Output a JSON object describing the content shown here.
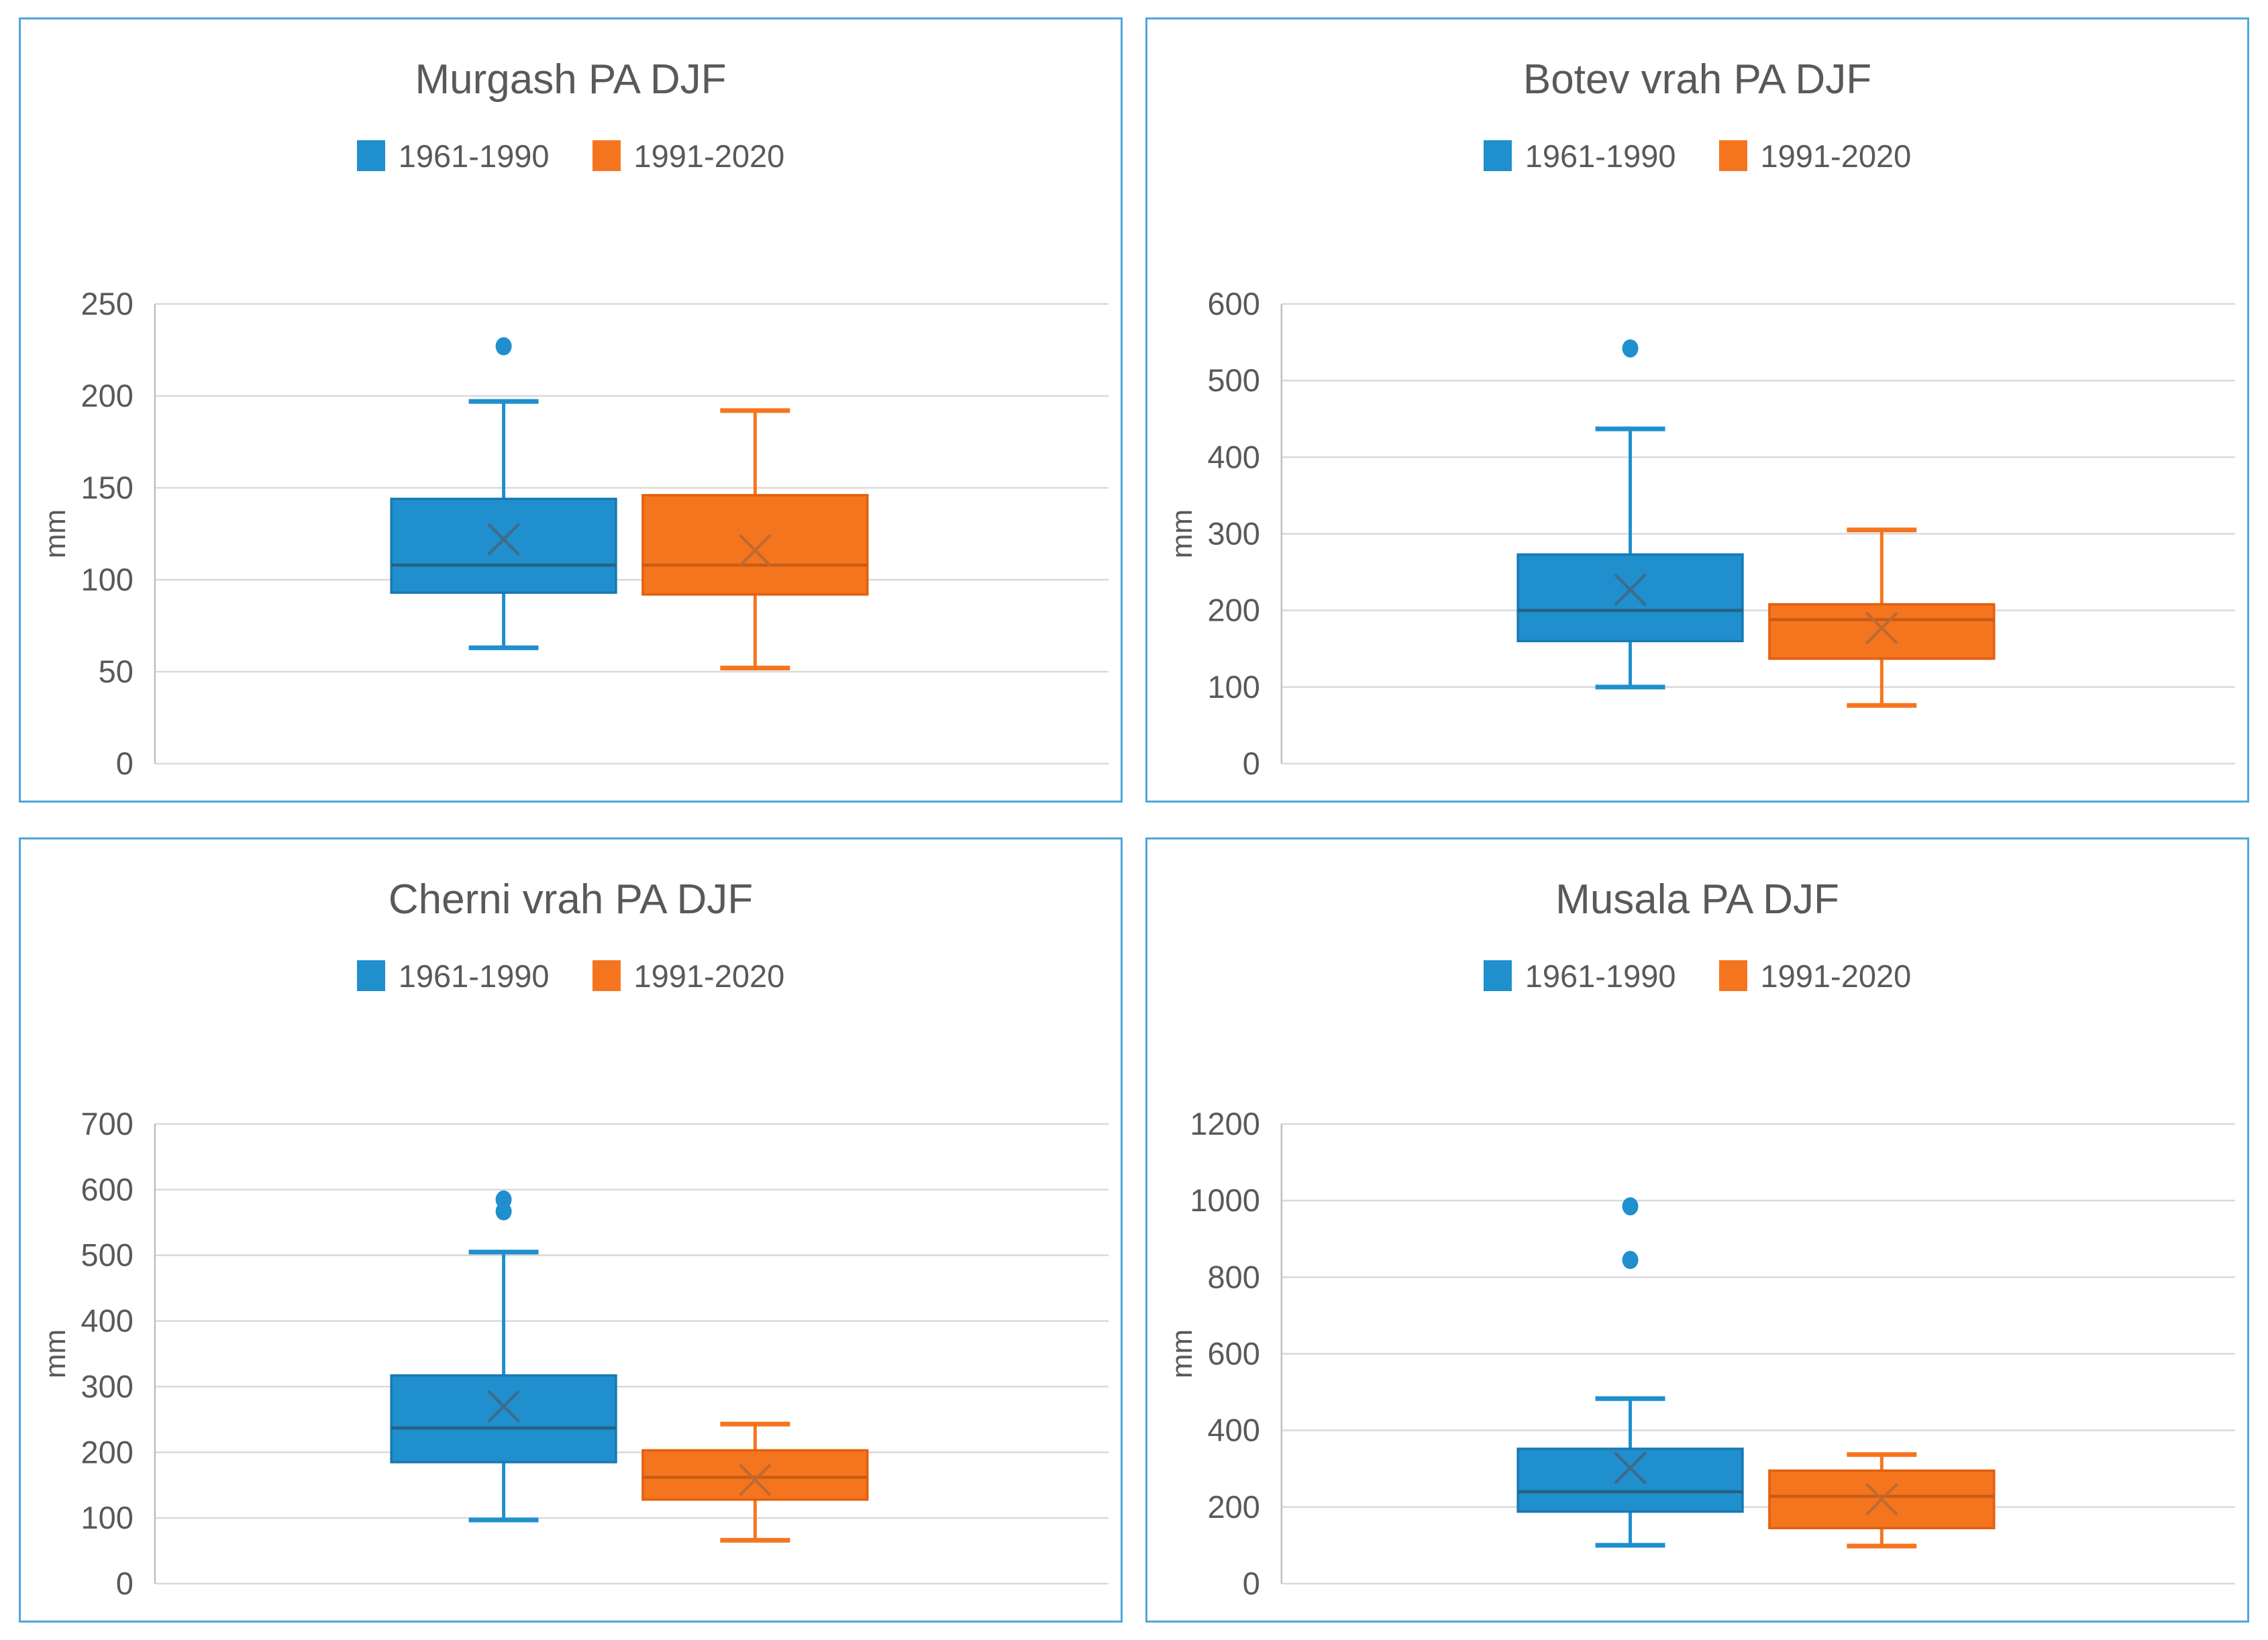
{
  "page": {
    "background": "#FFFFFF",
    "panel_border_color": "#4EA6DE"
  },
  "styles": {
    "gridline": "#D9D9D9",
    "axis_line": "#BFBFBF",
    "text_color": "#595959",
    "series_blue": {
      "fill": "#1F8FCE",
      "stroke": "#1879B2",
      "median": "#27617F",
      "mean": "#3D6D8C"
    },
    "series_orange": {
      "fill": "#F5751F",
      "stroke": "#E25F0E",
      "median": "#C85C14",
      "mean": "#C06A31"
    }
  },
  "chart_data": [
    {
      "type": "boxplot",
      "title": "Murgash PA DJF",
      "ylabel": "mm",
      "ylim": [
        0,
        250
      ],
      "ytick_step": 50,
      "grid": true,
      "legend_position": "top",
      "legend": [
        "1961-1990",
        "1991-2020"
      ],
      "series": [
        {
          "name": "1961-1990",
          "color_key": "series_blue",
          "whisker_min": 63,
          "q1": 93,
          "median": 108,
          "q3": 144,
          "whisker_max": 197,
          "mean": 122,
          "outliers": [
            227
          ]
        },
        {
          "name": "1991-2020",
          "color_key": "series_orange",
          "whisker_min": 52,
          "q1": 92,
          "median": 108,
          "q3": 146,
          "whisker_max": 192,
          "mean": 116,
          "outliers": []
        }
      ]
    },
    {
      "type": "boxplot",
      "title": "Botev vrah PA DJF",
      "ylabel": "mm",
      "ylim": [
        0,
        600
      ],
      "ytick_step": 100,
      "grid": true,
      "legend_position": "top",
      "legend": [
        "1961-1990",
        "1991-2020"
      ],
      "series": [
        {
          "name": "1961-1990",
          "color_key": "series_blue",
          "whisker_min": 100,
          "q1": 160,
          "median": 200,
          "q3": 273,
          "whisker_max": 437,
          "mean": 227,
          "outliers": [
            542
          ]
        },
        {
          "name": "1991-2020",
          "color_key": "series_orange",
          "whisker_min": 76,
          "q1": 137,
          "median": 188,
          "q3": 208,
          "whisker_max": 305,
          "mean": 177,
          "outliers": []
        }
      ]
    },
    {
      "type": "boxplot",
      "title": "Cherni vrah PA DJF",
      "ylabel": "mm",
      "ylim": [
        0,
        700
      ],
      "ytick_step": 100,
      "grid": true,
      "legend_position": "top",
      "legend": [
        "1961-1990",
        "1991-2020"
      ],
      "series": [
        {
          "name": "1961-1990",
          "color_key": "series_blue",
          "whisker_min": 97,
          "q1": 185,
          "median": 237,
          "q3": 317,
          "whisker_max": 505,
          "mean": 270,
          "outliers": [
            585,
            567
          ]
        },
        {
          "name": "1991-2020",
          "color_key": "series_orange",
          "whisker_min": 66,
          "q1": 128,
          "median": 162,
          "q3": 203,
          "whisker_max": 243,
          "mean": 158,
          "outliers": []
        }
      ]
    },
    {
      "type": "boxplot",
      "title": "Musala PA DJF",
      "ylabel": "mm",
      "ylim": [
        0,
        1200
      ],
      "ytick_step": 200,
      "grid": true,
      "legend_position": "top",
      "legend": [
        "1961-1990",
        "1991-2020"
      ],
      "series": [
        {
          "name": "1961-1990",
          "color_key": "series_blue",
          "whisker_min": 100,
          "q1": 188,
          "median": 240,
          "q3": 352,
          "whisker_max": 483,
          "mean": 302,
          "outliers": [
            985,
            845
          ]
        },
        {
          "name": "1991-2020",
          "color_key": "series_orange",
          "whisker_min": 98,
          "q1": 145,
          "median": 228,
          "q3": 295,
          "whisker_max": 337,
          "mean": 220,
          "outliers": []
        }
      ]
    }
  ]
}
